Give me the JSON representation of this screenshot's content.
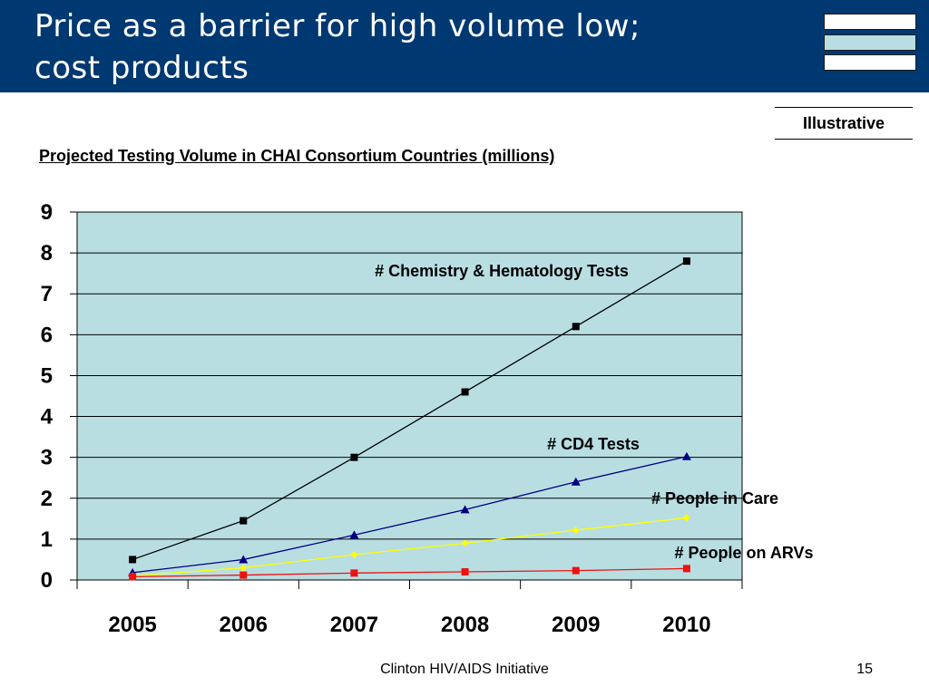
{
  "slide": {
    "title_line1": "Price as a barrier for high volume low;",
    "title_line2": "cost products",
    "illustrative_label": "Illustrative",
    "chart_heading": "Projected Testing Volume in CHAI Consortium Countries (millions)",
    "footer_text": "Clinton HIV/AIDS Initiative",
    "page_number": "15",
    "colors": {
      "header": "#003871",
      "plot_bg": "#b8dee2"
    }
  },
  "chart_data": {
    "type": "line",
    "title": "Projected Testing Volume in CHAI Consortium Countries (millions)",
    "x": [
      "2005",
      "2006",
      "2007",
      "2008",
      "2009",
      "2010"
    ],
    "ylim": [
      0,
      9
    ],
    "yticks": [
      0,
      1,
      2,
      3,
      4,
      5,
      6,
      7,
      8,
      9
    ],
    "grid": true,
    "series": [
      {
        "name": "# Chemistry & Hematology Tests",
        "color": "#000000",
        "marker": "square",
        "values": [
          0.5,
          1.45,
          3.0,
          4.6,
          6.2,
          7.8
        ]
      },
      {
        "name": "# CD4 Tests",
        "color": "#000080",
        "marker": "triangle",
        "values": [
          0.18,
          0.5,
          1.1,
          1.72,
          2.4,
          3.02
        ]
      },
      {
        "name": "# People in Care",
        "color": "#ffff00",
        "marker": "diamond",
        "values": [
          0.1,
          0.3,
          0.62,
          0.9,
          1.22,
          1.52
        ]
      },
      {
        "name": "# People on ARVs",
        "color": "#ee1111",
        "marker": "square",
        "values": [
          0.08,
          0.12,
          0.17,
          0.2,
          0.23,
          0.28
        ]
      }
    ]
  }
}
